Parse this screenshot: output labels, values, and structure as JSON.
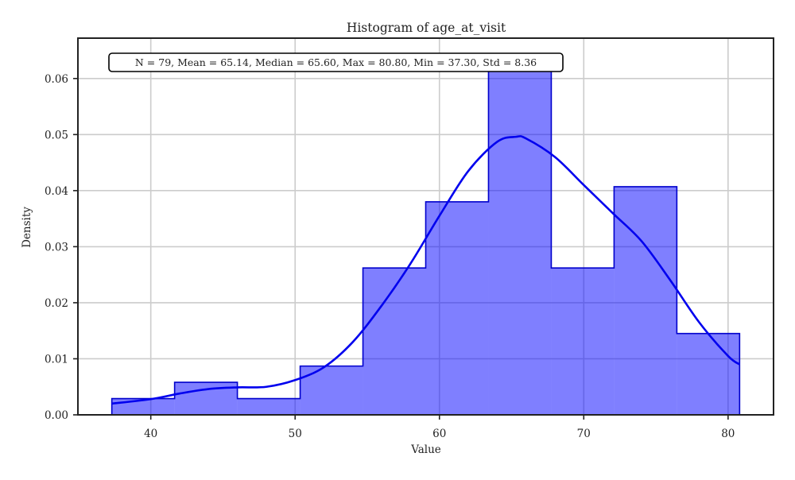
{
  "chart_data": {
    "type": "bar",
    "title": "Histogram of age_at_visit",
    "xlabel": "Value",
    "ylabel": "Density",
    "xlim": [
      34.95,
      83.15
    ],
    "ylim": [
      0,
      0.0672
    ],
    "xticks": [
      40,
      50,
      60,
      70,
      80
    ],
    "yticks": [
      0.0,
      0.01,
      0.02,
      0.03,
      0.04,
      0.05,
      0.06
    ],
    "grid": true,
    "bins": {
      "edges": [
        37.3,
        41.65,
        46.0,
        50.35,
        54.7,
        59.05,
        63.4,
        67.75,
        72.1,
        76.45,
        80.8
      ],
      "density": [
        0.0029,
        0.0058,
        0.0029,
        0.0087,
        0.0262,
        0.038,
        0.062,
        0.0262,
        0.0407,
        0.0145
      ]
    },
    "kde": {
      "x": [
        37.3,
        40,
        42,
        44,
        46,
        48,
        50,
        52,
        54,
        56,
        58,
        60,
        62,
        64,
        65.3,
        66,
        68,
        70,
        72,
        74,
        76,
        78,
        80,
        80.8
      ],
      "y": [
        0.002,
        0.0028,
        0.0038,
        0.0046,
        0.0049,
        0.005,
        0.0062,
        0.0085,
        0.013,
        0.0195,
        0.027,
        0.0355,
        0.0435,
        0.0487,
        0.0496,
        0.0493,
        0.046,
        0.041,
        0.036,
        0.031,
        0.024,
        0.0165,
        0.0105,
        0.009
      ]
    },
    "colors": {
      "bar_fill": "#0000ff",
      "bar_fill_opacity": 0.5,
      "bar_edge": "#0000cc",
      "kde_line": "#0000ee"
    },
    "annotation": "N = 79, Mean = 65.14, Median = 65.60, Max = 80.80, Min = 37.30, Std = 8.36",
    "annotation_placement": "top-left"
  }
}
